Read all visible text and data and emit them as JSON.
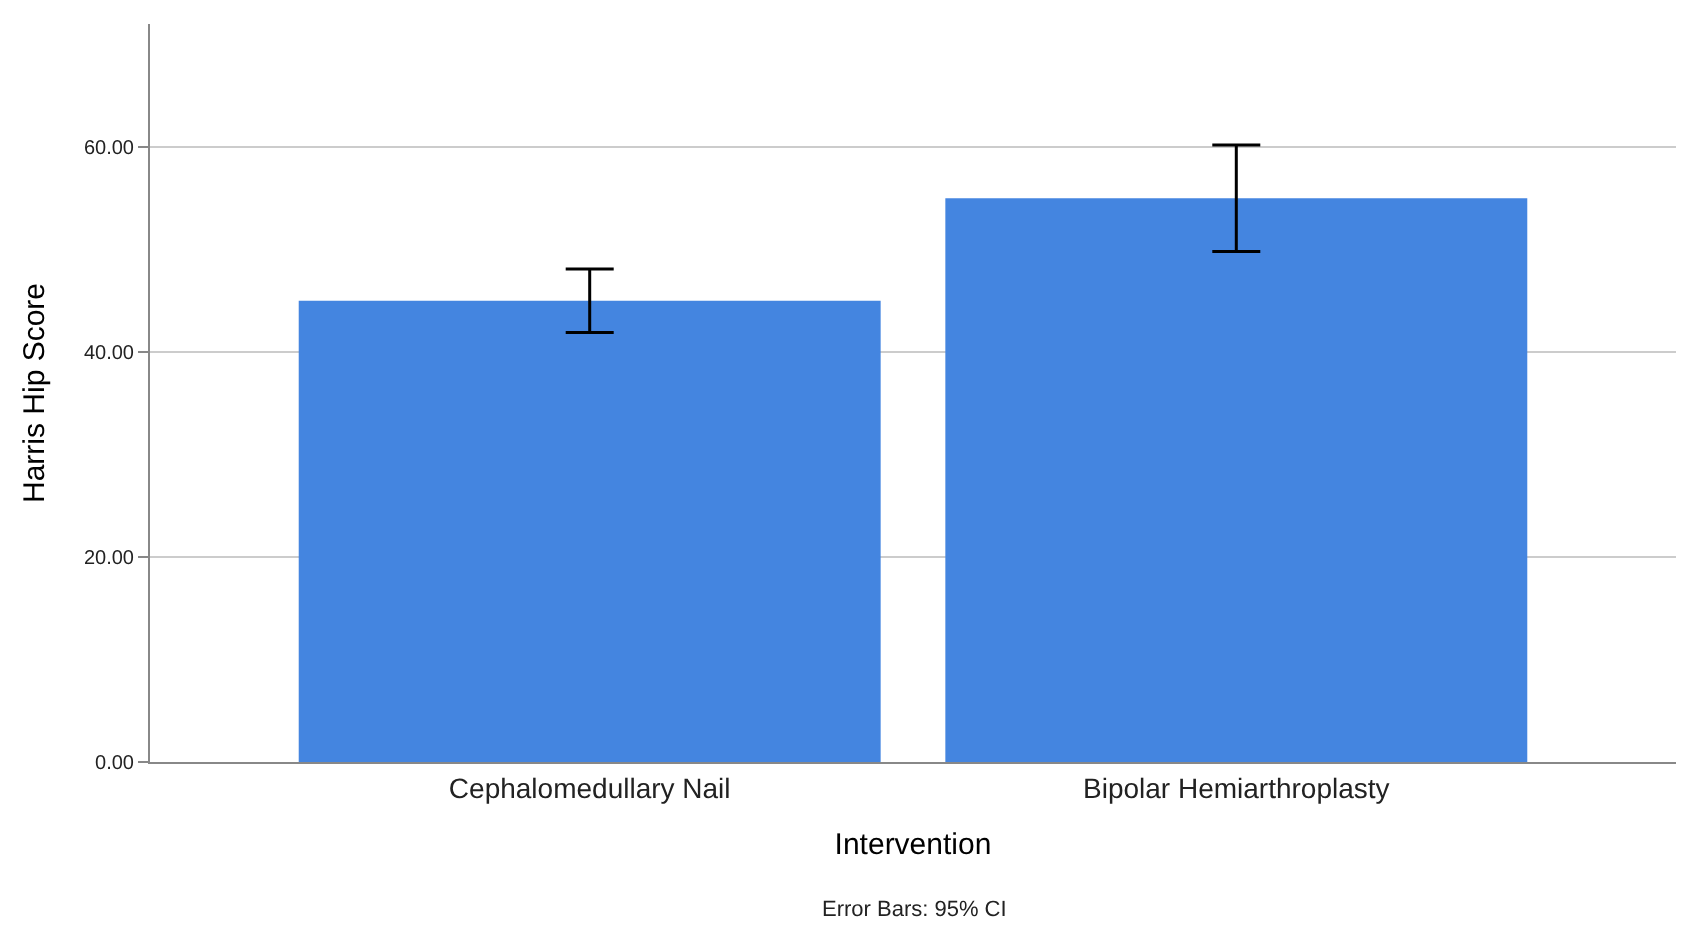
{
  "chart_data": {
    "type": "bar",
    "xlabel": "Intervention",
    "ylabel": "Harris Hip Score",
    "categories": [
      "Cephalomedullary Nail",
      "Bipolar Hemiarthroplasty"
    ],
    "values": [
      45.0,
      55.0
    ],
    "color": "#4485e0",
    "errors": [
      [
        41.9,
        48.1
      ],
      [
        49.8,
        60.2
      ]
    ],
    "ylim": [
      0,
      72
    ],
    "yticks": [
      {
        "value": 0,
        "label": "0.00"
      },
      {
        "value": 20,
        "label": "20.00"
      },
      {
        "value": 40,
        "label": "40.00"
      },
      {
        "value": 60,
        "label": "60.00"
      }
    ],
    "grid": "y",
    "annotations": [
      "Error Bars: 95% CI"
    ]
  }
}
